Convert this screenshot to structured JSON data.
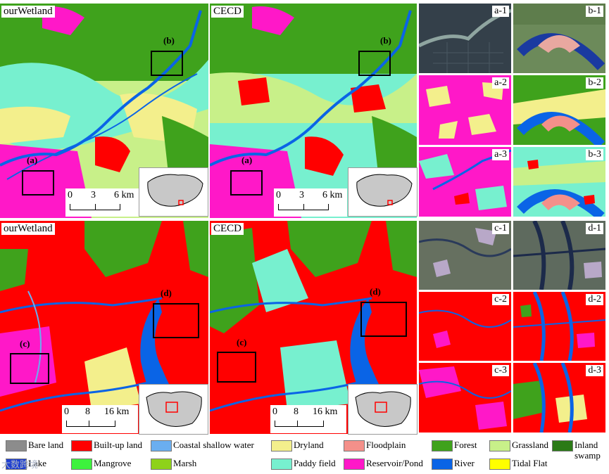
{
  "panels": {
    "top_left_label": "ourWetland",
    "top_mid_label": "CECD",
    "bottom_left_label": "ourWetland",
    "bottom_mid_label": "CECD",
    "box_a": "(a)",
    "box_b": "(b)",
    "box_c": "(c)",
    "box_d": "(d)"
  },
  "scale_top": {
    "n0": "0",
    "n1": "3",
    "n2": "6 km"
  },
  "scale_bottom": {
    "n0": "0",
    "n1": "8",
    "n2": "16 km"
  },
  "sub_labels": {
    "a1": "a-1",
    "a2": "a-2",
    "a3": "a-3",
    "b1": "b-1",
    "b2": "b-2",
    "b3": "b-3",
    "c1": "c-1",
    "c2": "c-2",
    "c3": "c-3",
    "d1": "d-1",
    "d2": "d-2",
    "d3": "d-3"
  },
  "legend": [
    {
      "label": "Bare land",
      "color": "#8c8c8c"
    },
    {
      "label": "Built-up land",
      "color": "#ff0000"
    },
    {
      "label": "Coastal shallow water",
      "color": "#6aaef0"
    },
    {
      "label": "Dryland",
      "color": "#f3ef8c"
    },
    {
      "label": "Floodplain",
      "color": "#f4908a"
    },
    {
      "label": "Forest",
      "color": "#3fa21c"
    },
    {
      "label": "Grassland",
      "color": "#c8f089"
    },
    {
      "label": "Inland swamp",
      "color": "#2b7a16"
    },
    {
      "label": "Lake",
      "color": "#1f3fd0"
    },
    {
      "label": "Mangrove",
      "color": "#3df23d"
    },
    {
      "label": "Marsh",
      "color": "#8ed21a"
    },
    {
      "label": "Paddy field",
      "color": "#77f0cf"
    },
    {
      "label": "Reservoir/Pond",
      "color": "#ff18c8"
    },
    {
      "label": "River",
      "color": "#0a64e6"
    },
    {
      "label": "Tidal Flat",
      "color": "#ffff00"
    }
  ],
  "watermark": "大数跨境"
}
